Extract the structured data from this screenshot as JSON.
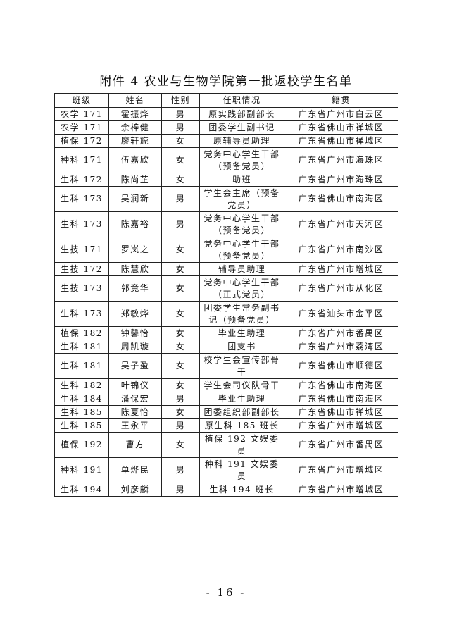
{
  "title": "附件 4  农业与生物学院第一批返校学生名单",
  "headers": [
    "班级",
    "姓名",
    "性别",
    "任职情况",
    "籍贯"
  ],
  "rows": [
    [
      "农学 171",
      "霍振烨",
      "男",
      "原实践部副部长",
      "广东省广州市白云区"
    ],
    [
      "农学 171",
      "余梓健",
      "男",
      "团委学生副书记",
      "广东省佛山市禅城区"
    ],
    [
      "植保 172",
      "廖轩旎",
      "女",
      "原辅导员助理",
      "广东省佛山市禅城区"
    ],
    [
      "种科 171",
      "伍嘉欣",
      "女",
      "党务中心学生干部（预备党员）",
      "广东省广州市海珠区"
    ],
    [
      "生科 172",
      "陈尚芷",
      "女",
      "助班",
      "广东省广州市海珠区"
    ],
    [
      "生科 173",
      "吴润新",
      "男",
      "学生会主席（预备党员）",
      "广东省佛山市南海区"
    ],
    [
      "生科 173",
      "陈嘉裕",
      "男",
      "党务中心学生干部（预备党员）",
      "广东省广州市天河区"
    ],
    [
      "生技 171",
      "罗岚之",
      "女",
      "党务中心学生干部（预备党员）",
      "广东省广州市南沙区"
    ],
    [
      "生技 172",
      "陈慧欣",
      "女",
      "辅导员助理",
      "广东省广州市增城区"
    ],
    [
      "生技 173",
      "郭竟华",
      "女",
      "党务中心学生干部（正式党员）",
      "广东省广州市从化区"
    ],
    [
      "生科 173",
      "郑敏烨",
      "女",
      "团委学生常务副书记（预备党员）",
      "广东省汕头市金平区"
    ],
    [
      "植保 182",
      "钟馨怡",
      "女",
      "毕业生助理",
      "广东省广州市番禺区"
    ],
    [
      "生科 181",
      "周凯璇",
      "女",
      "团支书",
      "广东省广州市荔湾区"
    ],
    [
      "生科 181",
      "吴子盈",
      "女",
      "校学生会宣传部骨干",
      "广东省佛山市顺德区"
    ],
    [
      "生科 182",
      "叶锦仪",
      "女",
      "学生会司仪队骨干",
      "广东省佛山市南海区"
    ],
    [
      "生科 184",
      "潘保宏",
      "男",
      "毕业生助理",
      "广东省佛山市南海区"
    ],
    [
      "生科 185",
      "陈夏怡",
      "女",
      "团委组织部副部长",
      "广东省佛山市禅城区"
    ],
    [
      "生科 185",
      "王永平",
      "男",
      "原生科 185 班长",
      "广东省广州市增城区"
    ],
    [
      "植保 192",
      "曹方",
      "女",
      "植保 192 文娱委员",
      "广东省广州市番禺区"
    ],
    [
      "种科 191",
      "单烨民",
      "男",
      "种科 191 文娱委员",
      "广东省广州市增城区"
    ],
    [
      "生科 194",
      "刘彦麟",
      "男",
      "生科 194 班长",
      "广东省广州市增城区"
    ]
  ],
  "page_number": "- 16 -"
}
